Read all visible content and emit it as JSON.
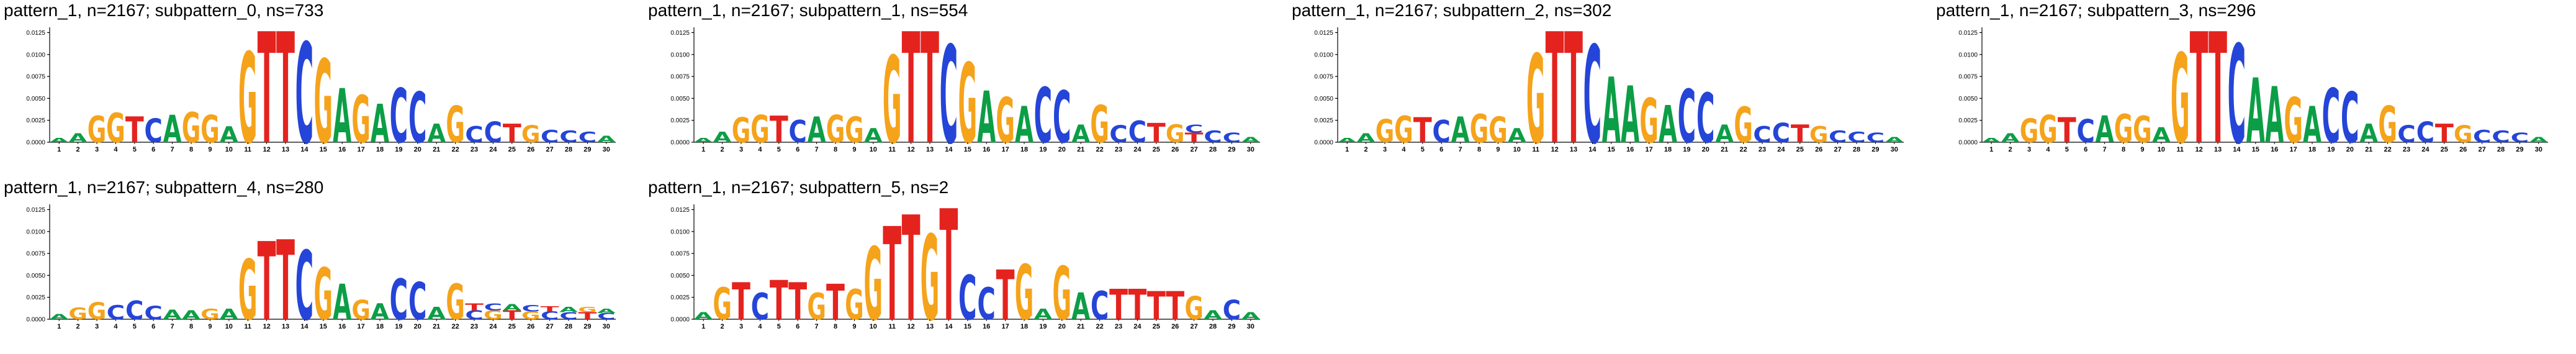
{
  "figure": {
    "background": "#ffffff",
    "rows": 2,
    "cols": 4
  },
  "letter_colors": {
    "A": "#0c9e46",
    "C": "#2545d8",
    "G": "#f5a31b",
    "T": "#e4231f"
  },
  "axis": {
    "ylim": [
      0,
      0.0131
    ],
    "ytick_values": [
      0.0,
      0.0025,
      0.005,
      0.0075,
      0.01,
      0.0125
    ],
    "ytick_labels": [
      "0.0000",
      "0.0025",
      "0.0050",
      "0.0075",
      "0.0100",
      "0.0125"
    ],
    "xticks": [
      1,
      2,
      3,
      4,
      5,
      6,
      7,
      8,
      9,
      10,
      11,
      12,
      13,
      14,
      15,
      16,
      17,
      18,
      19,
      20,
      21,
      22,
      23,
      24,
      25,
      26,
      27,
      28,
      29,
      30
    ],
    "grid": false,
    "xlabel": "",
    "ylabel": ""
  },
  "chart_data": [
    {
      "type": "sequence_logo",
      "title": "pattern_1, n=2167; subpattern_0, ns=733",
      "columns": [
        [
          [
            "A",
            0.0005
          ]
        ],
        [
          [
            "A",
            0.001
          ]
        ],
        [
          [
            "G",
            0.003
          ]
        ],
        [
          [
            "G",
            0.0033
          ]
        ],
        [
          [
            "T",
            0.0029
          ]
        ],
        [
          [
            "C",
            0.0027
          ]
        ],
        [
          [
            "A",
            0.0031
          ]
        ],
        [
          [
            "G",
            0.0034
          ]
        ],
        [
          [
            "G",
            0.0031
          ]
        ],
        [
          [
            "A",
            0.0018
          ]
        ],
        [
          [
            "G",
            0.0102
          ]
        ],
        [
          [
            "T",
            0.0125
          ]
        ],
        [
          [
            "T",
            0.0125
          ]
        ],
        [
          [
            "C",
            0.0113
          ]
        ],
        [
          [
            "G",
            0.0094
          ]
        ],
        [
          [
            "A",
            0.0061
          ]
        ],
        [
          [
            "G",
            0.0053
          ]
        ],
        [
          [
            "A",
            0.0043
          ]
        ],
        [
          [
            "C",
            0.0061
          ]
        ],
        [
          [
            "C",
            0.0057
          ]
        ],
        [
          [
            "A",
            0.0021
          ]
        ],
        [
          [
            "G",
            0.0041
          ]
        ],
        [
          [
            "C",
            0.0018
          ]
        ],
        [
          [
            "C",
            0.0023
          ]
        ],
        [
          [
            "T",
            0.0021
          ]
        ],
        [
          [
            "G",
            0.0019
          ]
        ],
        [
          [
            "C",
            0.0014
          ]
        ],
        [
          [
            "C",
            0.0013
          ]
        ],
        [
          [
            "C",
            0.0012
          ]
        ],
        [
          [
            "A",
            0.0007
          ]
        ]
      ]
    },
    {
      "type": "sequence_logo",
      "title": "pattern_1, n=2167; subpattern_1, ns=554",
      "columns": [
        [
          [
            "A",
            0.0005
          ]
        ],
        [
          [
            "A",
            0.0012
          ]
        ],
        [
          [
            "G",
            0.0028
          ]
        ],
        [
          [
            "G",
            0.0031
          ]
        ],
        [
          [
            "T",
            0.003
          ]
        ],
        [
          [
            "C",
            0.0025
          ]
        ],
        [
          [
            "A",
            0.0029
          ]
        ],
        [
          [
            "G",
            0.0031
          ]
        ],
        [
          [
            "G",
            0.0029
          ]
        ],
        [
          [
            "A",
            0.0016
          ]
        ],
        [
          [
            "G",
            0.0098
          ]
        ],
        [
          [
            "T",
            0.0125
          ]
        ],
        [
          [
            "T",
            0.0125
          ]
        ],
        [
          [
            "C",
            0.011
          ]
        ],
        [
          [
            "G",
            0.009
          ]
        ],
        [
          [
            "A",
            0.0058
          ]
        ],
        [
          [
            "G",
            0.0051
          ]
        ],
        [
          [
            "A",
            0.0041
          ]
        ],
        [
          [
            "C",
            0.0062
          ]
        ],
        [
          [
            "C",
            0.0058
          ]
        ],
        [
          [
            "A",
            0.002
          ]
        ],
        [
          [
            "G",
            0.0042
          ]
        ],
        [
          [
            "C",
            0.0019
          ]
        ],
        [
          [
            "C",
            0.0024
          ]
        ],
        [
          [
            "T",
            0.0022
          ]
        ],
        [
          [
            "G",
            0.002
          ]
        ],
        [
          [
            "T",
            0.0011
          ],
          [
            "C",
            0.0009
          ]
        ],
        [
          [
            "C",
            0.0013
          ]
        ],
        [
          [
            "C",
            0.0011
          ]
        ],
        [
          [
            "A",
            0.0006
          ]
        ]
      ]
    },
    {
      "type": "sequence_logo",
      "title": "pattern_1, n=2167; subpattern_2, ns=302",
      "columns": [
        [
          [
            "A",
            0.0005
          ]
        ],
        [
          [
            "A",
            0.001
          ]
        ],
        [
          [
            "G",
            0.0026
          ]
        ],
        [
          [
            "G",
            0.003
          ]
        ],
        [
          [
            "T",
            0.0028
          ]
        ],
        [
          [
            "C",
            0.0025
          ]
        ],
        [
          [
            "A",
            0.0029
          ]
        ],
        [
          [
            "G",
            0.0032
          ]
        ],
        [
          [
            "G",
            0.0029
          ]
        ],
        [
          [
            "A",
            0.0016
          ]
        ],
        [
          [
            "G",
            0.01
          ]
        ],
        [
          [
            "T",
            0.0125
          ]
        ],
        [
          [
            "T",
            0.0125
          ]
        ],
        [
          [
            "C",
            0.011
          ]
        ],
        [
          [
            "A",
            0.0074
          ]
        ],
        [
          [
            "A",
            0.0064
          ]
        ],
        [
          [
            "G",
            0.005
          ]
        ],
        [
          [
            "A",
            0.0042
          ]
        ],
        [
          [
            "C",
            0.006
          ]
        ],
        [
          [
            "C",
            0.0056
          ]
        ],
        [
          [
            "A",
            0.002
          ]
        ],
        [
          [
            "G",
            0.004
          ]
        ],
        [
          [
            "C",
            0.0018
          ]
        ],
        [
          [
            "C",
            0.0022
          ]
        ],
        [
          [
            "T",
            0.002
          ]
        ],
        [
          [
            "G",
            0.0018
          ]
        ],
        [
          [
            "C",
            0.0013
          ]
        ],
        [
          [
            "C",
            0.0012
          ]
        ],
        [
          [
            "C",
            0.0011
          ]
        ],
        [
          [
            "A",
            0.0006
          ]
        ]
      ]
    },
    {
      "type": "sequence_logo",
      "title": "pattern_1, n=2167; subpattern_3, ns=296",
      "columns": [
        [
          [
            "A",
            0.0005
          ]
        ],
        [
          [
            "A",
            0.001
          ]
        ],
        [
          [
            "G",
            0.0027
          ]
        ],
        [
          [
            "G",
            0.0031
          ]
        ],
        [
          [
            "T",
            0.0028
          ]
        ],
        [
          [
            "C",
            0.0026
          ]
        ],
        [
          [
            "A",
            0.003
          ]
        ],
        [
          [
            "G",
            0.0032
          ]
        ],
        [
          [
            "G",
            0.003
          ]
        ],
        [
          [
            "A",
            0.0017
          ]
        ],
        [
          [
            "G",
            0.0101
          ]
        ],
        [
          [
            "T",
            0.0125
          ]
        ],
        [
          [
            "T",
            0.0125
          ]
        ],
        [
          [
            "C",
            0.0111
          ]
        ],
        [
          [
            "A",
            0.0073
          ]
        ],
        [
          [
            "A",
            0.0063
          ]
        ],
        [
          [
            "G",
            0.0051
          ]
        ],
        [
          [
            "A",
            0.0041
          ]
        ],
        [
          [
            "C",
            0.0061
          ]
        ],
        [
          [
            "C",
            0.0057
          ]
        ],
        [
          [
            "A",
            0.0021
          ]
        ],
        [
          [
            "G",
            0.0041
          ]
        ],
        [
          [
            "C",
            0.0019
          ]
        ],
        [
          [
            "C",
            0.0023
          ]
        ],
        [
          [
            "T",
            0.0021
          ]
        ],
        [
          [
            "G",
            0.0019
          ]
        ],
        [
          [
            "C",
            0.0014
          ]
        ],
        [
          [
            "C",
            0.0013
          ]
        ],
        [
          [
            "C",
            0.0011
          ]
        ],
        [
          [
            "A",
            0.0006
          ]
        ]
      ]
    },
    {
      "type": "sequence_logo",
      "title": "pattern_1, n=2167; subpattern_4, ns=280",
      "columns": [
        [
          [
            "A",
            0.0006
          ]
        ],
        [
          [
            "G",
            0.0013
          ]
        ],
        [
          [
            "G",
            0.0019
          ]
        ],
        [
          [
            "C",
            0.0016
          ]
        ],
        [
          [
            "C",
            0.0021
          ]
        ],
        [
          [
            "C",
            0.0015
          ]
        ],
        [
          [
            "A",
            0.0011
          ]
        ],
        [
          [
            "A",
            0.001
          ]
        ],
        [
          [
            "G",
            0.0012
          ]
        ],
        [
          [
            "A",
            0.0012
          ]
        ],
        [
          [
            "G",
            0.0068
          ]
        ],
        [
          [
            "T",
            0.0088
          ]
        ],
        [
          [
            "T",
            0.009
          ]
        ],
        [
          [
            "C",
            0.0078
          ]
        ],
        [
          [
            "G",
            0.0058
          ]
        ],
        [
          [
            "A",
            0.004
          ]
        ],
        [
          [
            "G",
            0.0022
          ]
        ],
        [
          [
            "A",
            0.0018
          ]
        ],
        [
          [
            "C",
            0.0046
          ]
        ],
        [
          [
            "C",
            0.0042
          ]
        ],
        [
          [
            "A",
            0.0014
          ]
        ],
        [
          [
            "G",
            0.004
          ]
        ],
        [
          [
            "C",
            0.001
          ],
          [
            "T",
            0.0008
          ]
        ],
        [
          [
            "G",
            0.001
          ],
          [
            "C",
            0.0008
          ]
        ],
        [
          [
            "T",
            0.001
          ],
          [
            "A",
            0.0007
          ]
        ],
        [
          [
            "G",
            0.0009
          ],
          [
            "C",
            0.0007
          ]
        ],
        [
          [
            "C",
            0.0009
          ],
          [
            "T",
            0.0006
          ]
        ],
        [
          [
            "C",
            0.0008
          ],
          [
            "A",
            0.0006
          ]
        ],
        [
          [
            "T",
            0.0008
          ],
          [
            "G",
            0.0006
          ]
        ],
        [
          [
            "C",
            0.0007
          ],
          [
            "A",
            0.0005
          ]
        ]
      ]
    },
    {
      "type": "sequence_logo",
      "title": "pattern_1, n=2167; subpattern_5, ns=2",
      "columns": [
        [
          [
            "A",
            0.0008
          ]
        ],
        [
          [
            "G",
            0.0036
          ]
        ],
        [
          [
            "T",
            0.0042
          ]
        ],
        [
          [
            "C",
            0.003
          ]
        ],
        [
          [
            "T",
            0.0044
          ]
        ],
        [
          [
            "T",
            0.0042
          ]
        ],
        [
          [
            "G",
            0.003
          ]
        ],
        [
          [
            "T",
            0.004
          ]
        ],
        [
          [
            "G",
            0.0034
          ]
        ],
        [
          [
            "G",
            0.0082
          ]
        ],
        [
          [
            "T",
            0.0105
          ]
        ],
        [
          [
            "T",
            0.0118
          ]
        ],
        [
          [
            "G",
            0.0096
          ]
        ],
        [
          [
            "T",
            0.0125
          ]
        ],
        [
          [
            "C",
            0.005
          ]
        ],
        [
          [
            "C",
            0.0036
          ]
        ],
        [
          [
            "T",
            0.0056
          ]
        ],
        [
          [
            "G",
            0.0062
          ]
        ],
        [
          [
            "A",
            0.0012
          ]
        ],
        [
          [
            "G",
            0.006
          ]
        ],
        [
          [
            "A",
            0.003
          ]
        ],
        [
          [
            "C",
            0.0032
          ]
        ],
        [
          [
            "T",
            0.0034
          ]
        ],
        [
          [
            "T",
            0.0034
          ]
        ],
        [
          [
            "T",
            0.0032
          ]
        ],
        [
          [
            "T",
            0.0032
          ]
        ],
        [
          [
            "G",
            0.0026
          ]
        ],
        [
          [
            "A",
            0.001
          ]
        ],
        [
          [
            "C",
            0.0022
          ]
        ],
        [
          [
            "A",
            0.0008
          ]
        ]
      ]
    }
  ]
}
